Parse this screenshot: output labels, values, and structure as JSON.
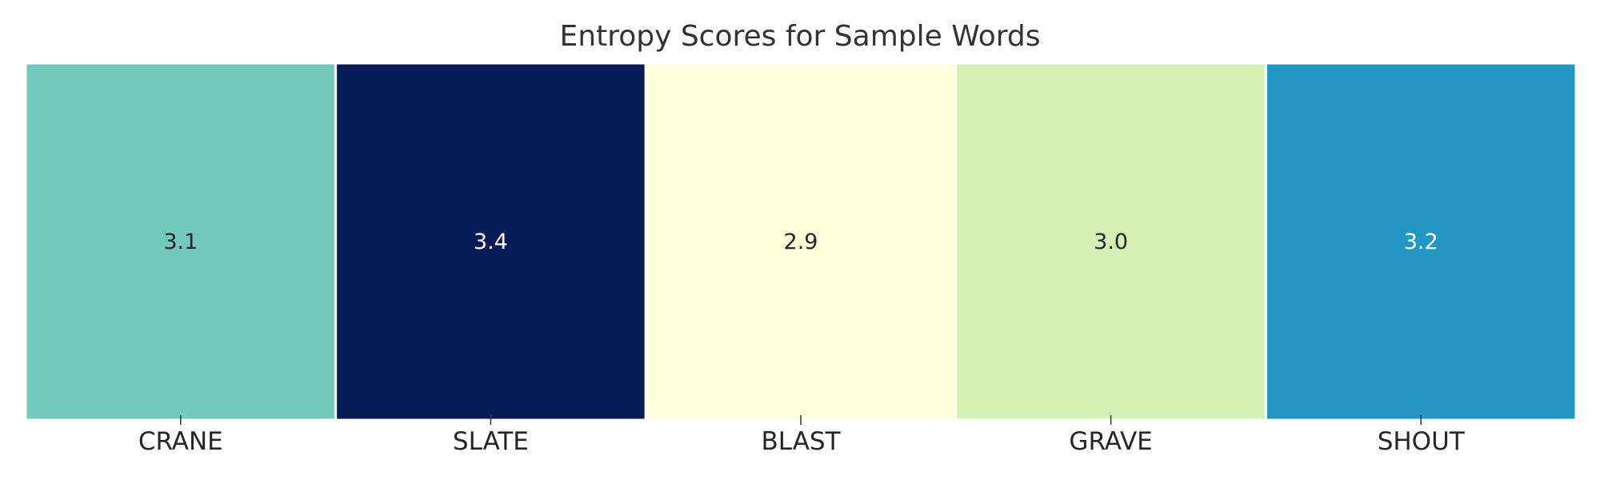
{
  "chart_data": {
    "type": "heatmap",
    "title": "Entropy Scores for Sample Words",
    "categories": [
      "CRANE",
      "SLATE",
      "BLAST",
      "GRAVE",
      "SHOUT"
    ],
    "values": [
      3.1,
      3.4,
      2.9,
      3.0,
      3.2
    ],
    "value_labels": [
      "3.1",
      "3.4",
      "2.9",
      "3.0",
      "3.2"
    ],
    "colormap": "YlGnBu",
    "cell_colors": [
      "#74c9bd",
      "#081d58",
      "#ffffd9",
      "#d6efb3",
      "#2397c4"
    ],
    "label_colors": [
      "#262626",
      "#ffffff",
      "#262626",
      "#262626",
      "#ffffff"
    ],
    "xlabel": "",
    "ylabel": "",
    "colorbar": false,
    "grid": false
  }
}
